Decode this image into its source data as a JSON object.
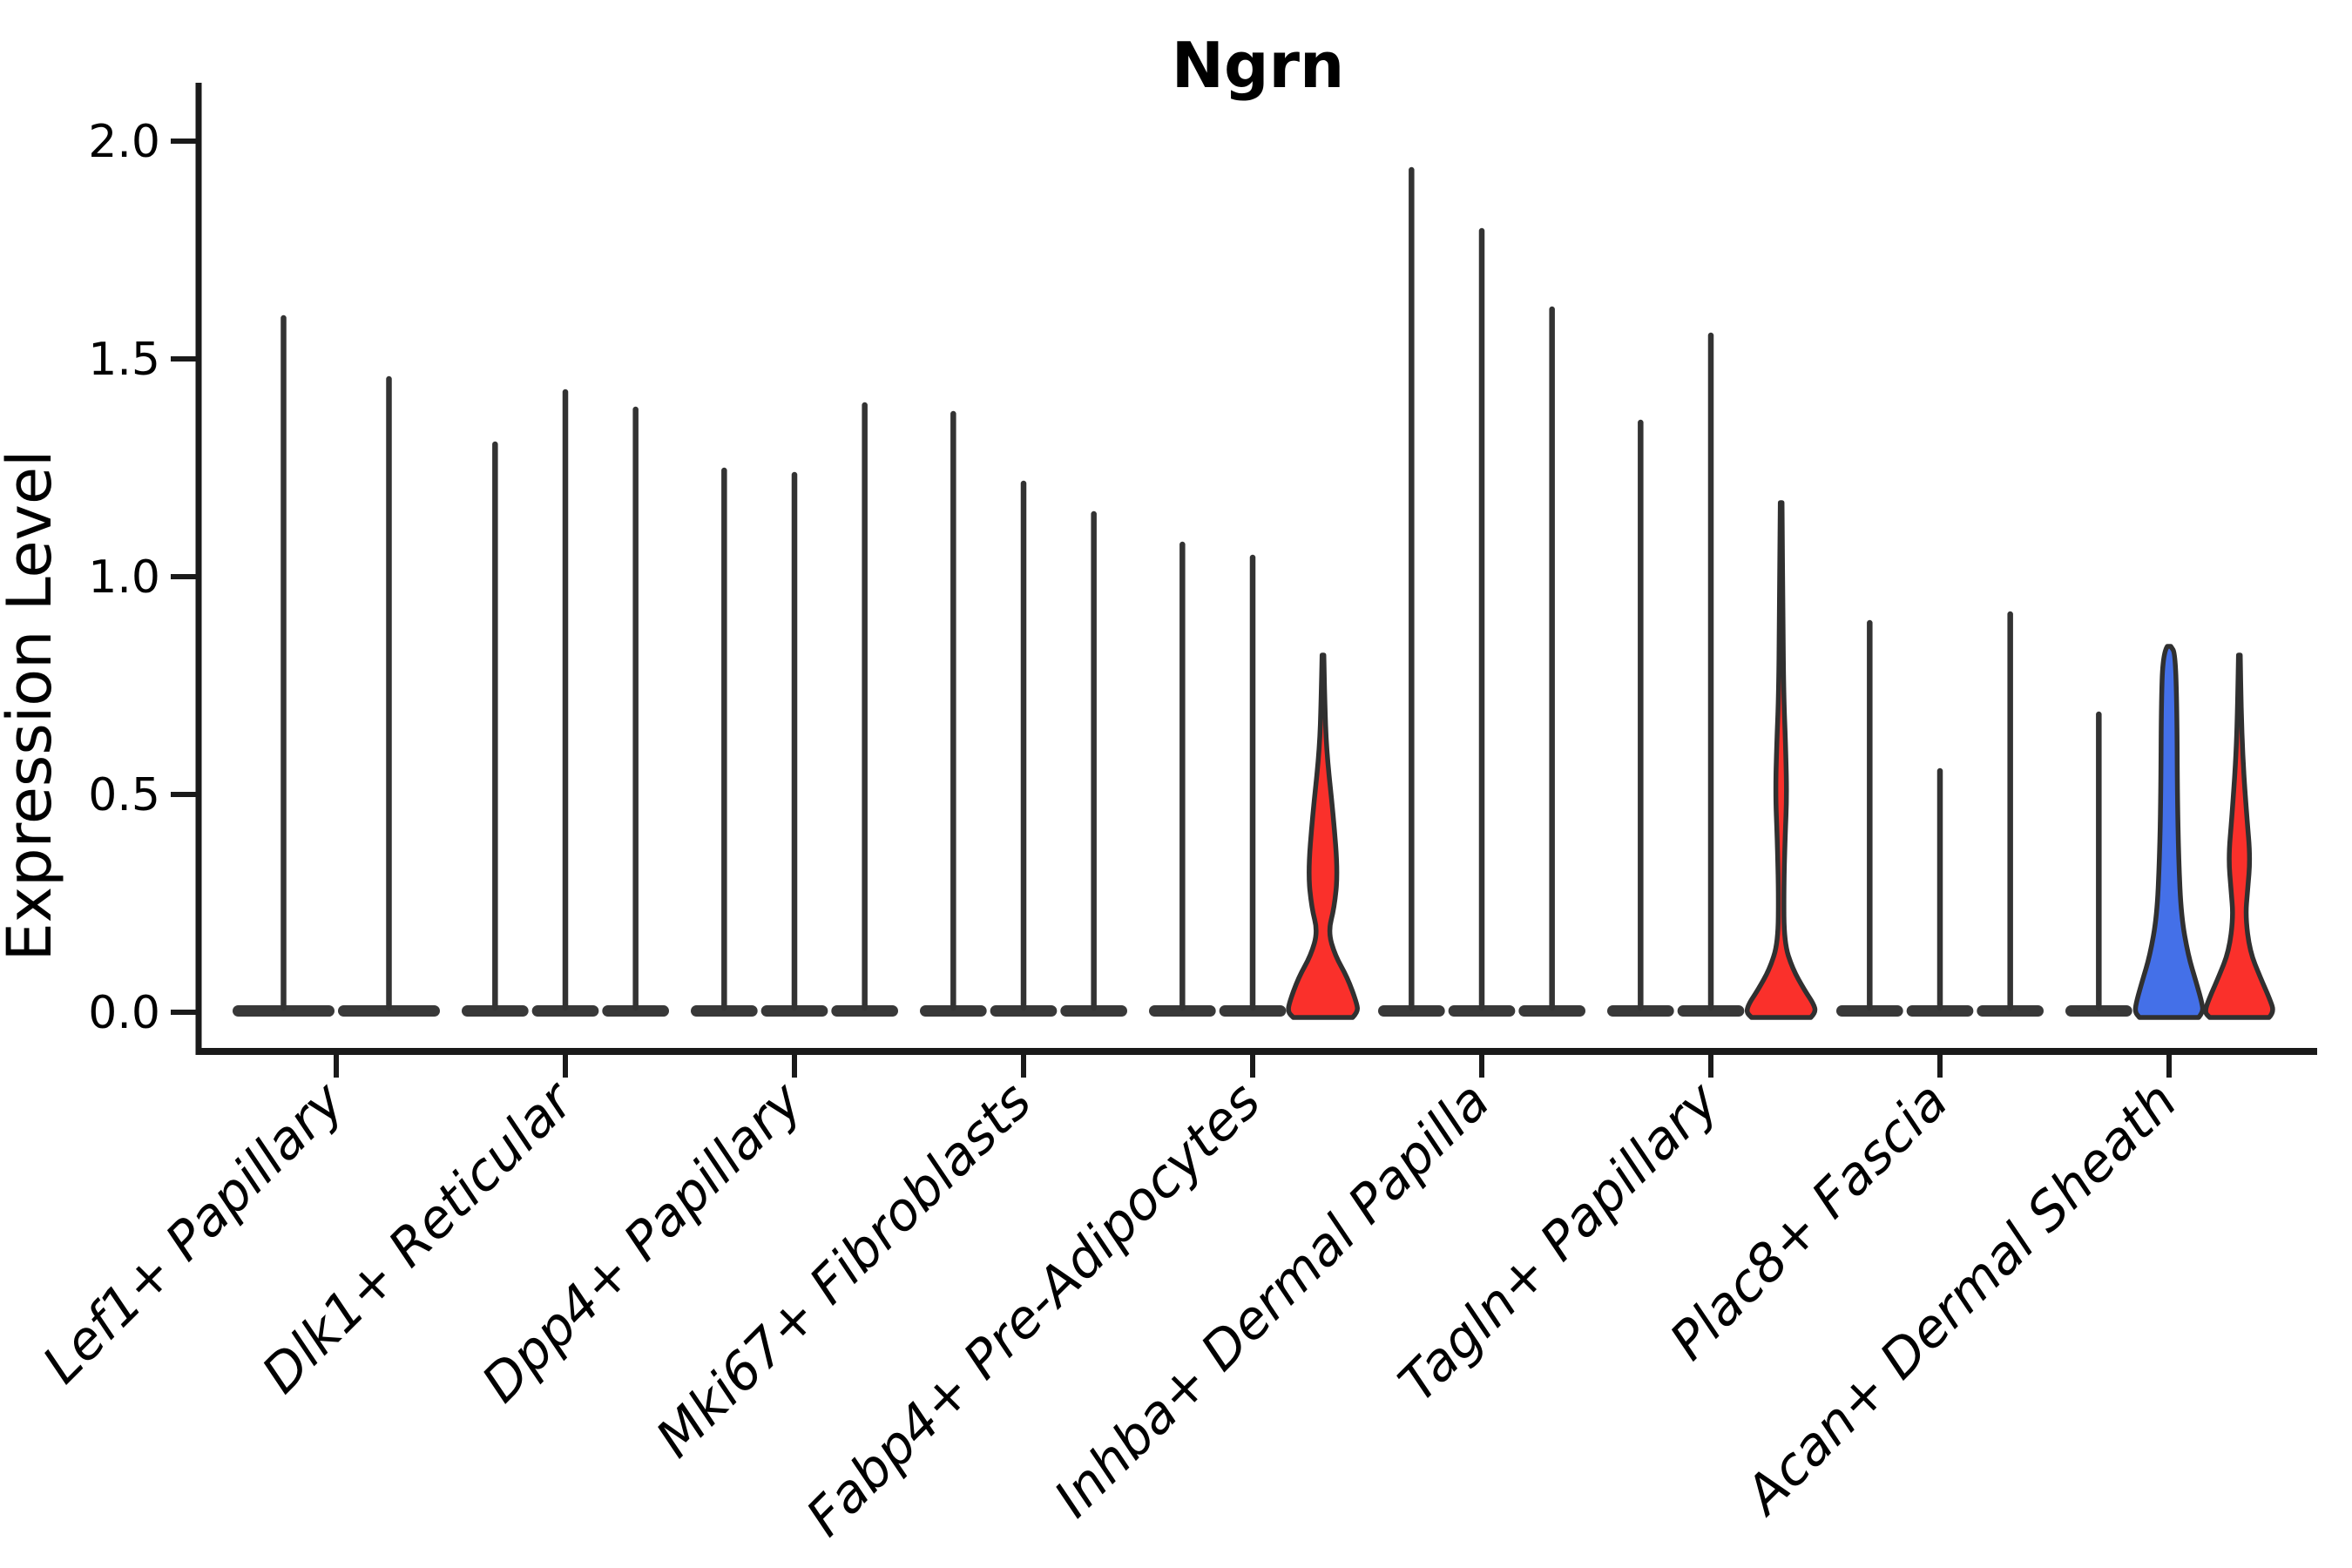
{
  "chart_data": {
    "type": "violin",
    "title": "Ngrn",
    "ylabel": "Expression Level",
    "xlabel": "",
    "ylim": [
      0.0,
      2.0
    ],
    "yticks": [
      0.0,
      0.5,
      1.0,
      1.5,
      2.0
    ],
    "grid": false,
    "legend": "none",
    "colors": {
      "background": "#ffffff",
      "axis": "#1a1a1a",
      "outline": "#303030",
      "spike": "#333333",
      "body": "#383838",
      "red": "#fa302b",
      "blue": "#4470e8"
    },
    "groups": [
      {
        "label": "Lef1+ Papillary",
        "violins": [
          {
            "max": 1.6,
            "color": "black"
          },
          {
            "max": 1.46,
            "color": "black"
          }
        ]
      },
      {
        "label": "Dlk1+ Reticular",
        "violins": [
          {
            "max": 1.31,
            "color": "black"
          },
          {
            "max": 1.43,
            "color": "black"
          },
          {
            "max": 1.39,
            "color": "black"
          }
        ]
      },
      {
        "label": "Dpp4+ Papillary",
        "violins": [
          {
            "max": 1.25,
            "color": "black"
          },
          {
            "max": 1.24,
            "color": "black"
          },
          {
            "max": 1.4,
            "color": "black"
          }
        ]
      },
      {
        "label": "Mki67+ Fibroblasts",
        "violins": [
          {
            "max": 1.38,
            "color": "black"
          },
          {
            "max": 1.22,
            "color": "black"
          },
          {
            "max": 1.15,
            "color": "black"
          }
        ]
      },
      {
        "label": "Fabp4+ Pre-Adipocytes",
        "violins": [
          {
            "max": 1.08,
            "color": "black"
          },
          {
            "max": 1.05,
            "color": "black"
          },
          {
            "max": 0.82,
            "color": "red",
            "profile": [
              [
                0.82,
                1
              ],
              [
                0.72,
                2
              ],
              [
                0.6,
                4
              ],
              [
                0.45,
                12
              ],
              [
                0.32,
                17
              ],
              [
                0.24,
                13
              ],
              [
                0.185,
                6
              ],
              [
                0.13,
                14
              ],
              [
                0.08,
                28
              ],
              [
                0.02,
                39
              ],
              [
                0.0,
                40
              ],
              [
                -0.012,
                34
              ]
            ]
          }
        ]
      },
      {
        "label": "Inhba+ Dermal Papilla",
        "violins": [
          {
            "max": 1.94,
            "color": "black"
          },
          {
            "max": 1.8,
            "color": "black"
          },
          {
            "max": 1.62,
            "color": "black"
          }
        ]
      },
      {
        "label": "Tagln+ Papillary",
        "violins": [
          {
            "max": 1.36,
            "color": "black"
          },
          {
            "max": 1.56,
            "color": "black"
          },
          {
            "max": 1.17,
            "color": "red",
            "profile": [
              [
                1.17,
                1
              ],
              [
                0.9,
                2
              ],
              [
                0.72,
                3
              ],
              [
                0.62,
                5
              ],
              [
                0.5,
                6.5
              ],
              [
                0.4,
                4.5
              ],
              [
                0.28,
                3
              ],
              [
                0.16,
                3.5
              ],
              [
                0.1,
                13
              ],
              [
                0.05,
                27
              ],
              [
                0.02,
                37
              ],
              [
                0.0,
                40
              ],
              [
                -0.012,
                34
              ]
            ]
          }
        ]
      },
      {
        "label": "Plac8+ Fascia",
        "violins": [
          {
            "max": 0.9,
            "color": "black"
          },
          {
            "max": 0.56,
            "color": "black"
          },
          {
            "max": 0.92,
            "color": "black"
          }
        ]
      },
      {
        "label": "Acan+ Dermal Sheath",
        "violins": [
          {
            "max": 0.69,
            "color": "black"
          },
          {
            "max": 0.84,
            "color": "blue",
            "profile": [
              [
                0.84,
                2
              ],
              [
                0.825,
                7
              ],
              [
                0.7,
                9
              ],
              [
                0.5,
                9.5
              ],
              [
                0.35,
                11
              ],
              [
                0.22,
                14
              ],
              [
                0.13,
                22
              ],
              [
                0.07,
                31
              ],
              [
                0.02,
                38
              ],
              [
                0.0,
                39
              ],
              [
                -0.012,
                34
              ]
            ]
          },
          {
            "max": 0.82,
            "color": "red",
            "profile": [
              [
                0.82,
                1
              ],
              [
                0.7,
                2
              ],
              [
                0.58,
                4
              ],
              [
                0.45,
                8.5
              ],
              [
                0.355,
                12.5
              ],
              [
                0.28,
                9.5
              ],
              [
                0.22,
                7
              ],
              [
                0.14,
                12
              ],
              [
                0.08,
                24
              ],
              [
                0.03,
                35
              ],
              [
                0.0,
                40
              ],
              [
                -0.012,
                34
              ]
            ]
          }
        ]
      }
    ]
  }
}
